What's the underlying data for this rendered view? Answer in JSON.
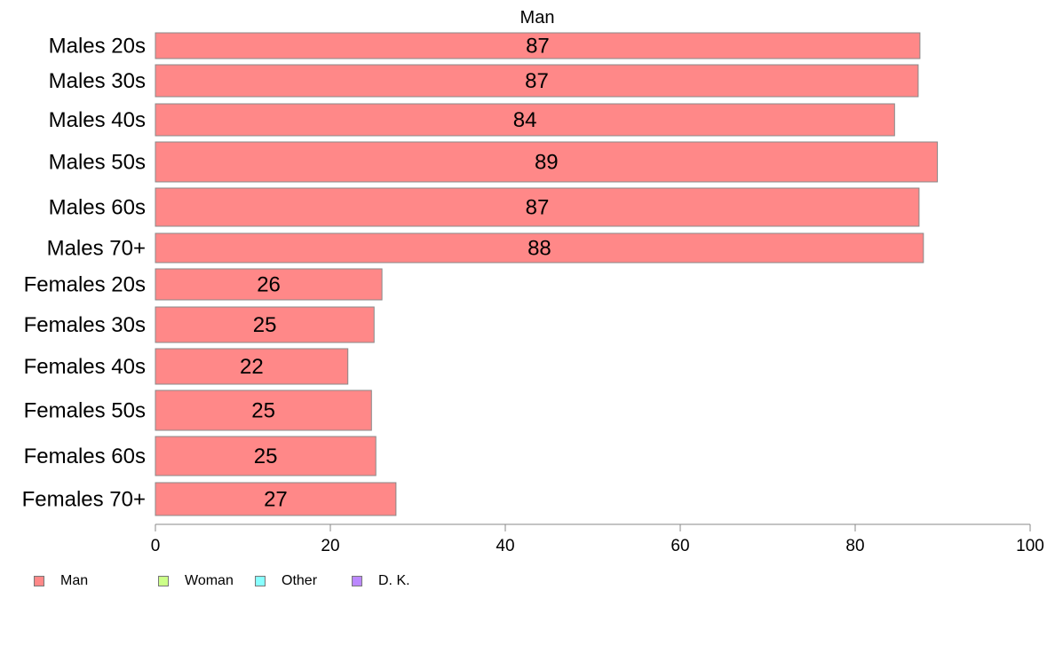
{
  "chart_data": {
    "type": "bar",
    "orientation": "horizontal",
    "title": "Man",
    "categories": [
      "Males 20s",
      "Males 30s",
      "Males 40s",
      "Males 50s",
      "Males 60s",
      "Males 70+",
      "Females 20s",
      "Females 30s",
      "Females 40s",
      "Females 50s",
      "Females 60s",
      "Females 70+"
    ],
    "values": [
      87.4,
      87.2,
      84.5,
      89.4,
      87.3,
      87.8,
      25.9,
      25.0,
      22.0,
      24.7,
      25.2,
      27.5
    ],
    "value_labels": [
      "87",
      "87",
      "84",
      "89",
      "87",
      "88",
      "26",
      "25",
      "22",
      "25",
      "25",
      "27"
    ],
    "xlim": [
      0,
      100
    ],
    "xticks": [
      "0",
      "20",
      "40",
      "60",
      "80",
      "100"
    ],
    "xlabel": "",
    "ylabel": "",
    "grid": false,
    "bar_color": "#ff8888",
    "legend_position": "bottom-left",
    "legend": [
      {
        "name": "Man",
        "color": "#ff8888"
      },
      {
        "name": "Woman",
        "color": "#ccff88"
      },
      {
        "name": "Other",
        "color": "#88ffff"
      },
      {
        "name": "D. K.",
        "color": "#bb88ff"
      }
    ]
  }
}
